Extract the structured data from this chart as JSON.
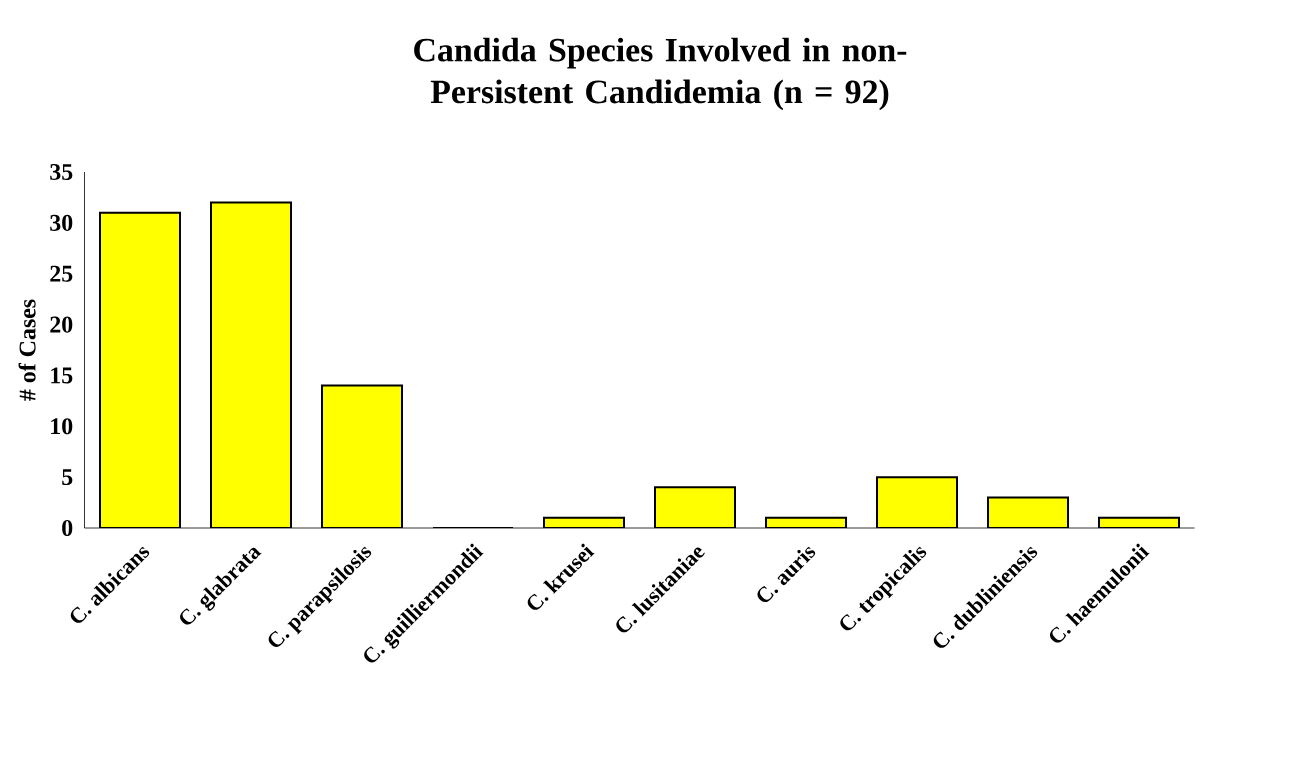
{
  "chart_data": {
    "type": "bar",
    "title": "Candida Species Involved in non-Persistent Candidemia (n = 92)",
    "ylabel": "# of Cases",
    "categories": [
      "C. albicans",
      "C. glabrata",
      "C. parapsilosis",
      "C. guilliermondii",
      "C. krusei",
      "C. lusitaniae",
      "C. auris",
      "C. tropicalis",
      "C. dubliniensis",
      "C. haemulonii"
    ],
    "values": [
      31,
      32,
      14,
      0,
      1,
      4,
      1,
      5,
      3,
      1
    ],
    "color": "#ffff00",
    "ylim": [
      0,
      35
    ],
    "yticks": [
      0,
      5,
      10,
      15,
      20,
      25,
      30,
      35
    ],
    "grid": false
  }
}
